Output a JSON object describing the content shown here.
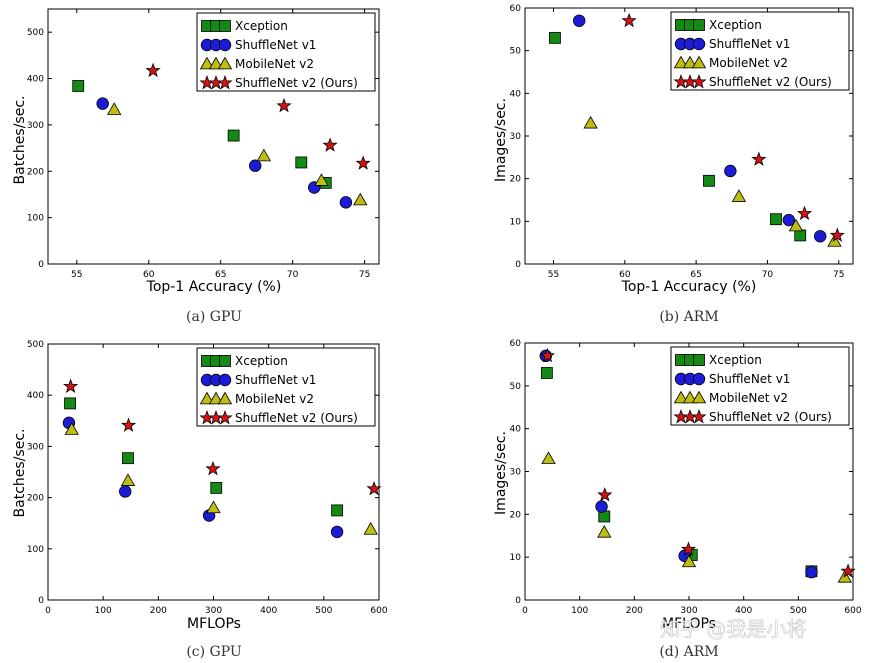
{
  "colors": {
    "xception": "#138a13",
    "shufflenet_v1": "#1c1cd6",
    "mobilenet_v2": "#bdbd14",
    "shufflenet_v2": "#d21414"
  },
  "watermark": "知乎 @我是小将",
  "chart_data": [
    {
      "type": "scatter",
      "id": "a",
      "caption": "(a) GPU",
      "xlabel": "Top-1 Accuracy (%)",
      "ylabel": "Batches/sec.",
      "xlim": [
        53,
        76
      ],
      "ylim": [
        0,
        550
      ],
      "xticks": [
        55,
        60,
        65,
        70,
        75
      ],
      "yticks": [
        0,
        100,
        200,
        300,
        400,
        500
      ],
      "legend_position": "top-right",
      "series": [
        {
          "name": "Xception",
          "marker": "square",
          "x": [
            55.1,
            65.9,
            70.6,
            72.3
          ],
          "y": [
            384,
            277,
            219,
            175
          ]
        },
        {
          "name": "ShuffleNet v1",
          "marker": "circle",
          "x": [
            56.8,
            67.4,
            71.5,
            73.7
          ],
          "y": [
            346,
            212,
            165,
            133
          ]
        },
        {
          "name": "MobileNet v2",
          "marker": "triangle",
          "x": [
            57.6,
            68.0,
            72.0,
            74.7
          ],
          "y": [
            333,
            233,
            180,
            138
          ]
        },
        {
          "name": "ShuffleNet v2 (Ours)",
          "marker": "star",
          "x": [
            60.3,
            69.4,
            72.6,
            74.9
          ],
          "y": [
            417,
            341,
            256,
            217
          ]
        }
      ]
    },
    {
      "type": "scatter",
      "id": "b",
      "caption": "(b) ARM",
      "xlabel": "Top-1 Accuracy (%)",
      "ylabel": "Images/sec.",
      "xlim": [
        53,
        76
      ],
      "ylim": [
        0,
        60
      ],
      "xticks": [
        55,
        60,
        65,
        70,
        75
      ],
      "yticks": [
        0,
        10,
        20,
        30,
        40,
        50,
        60
      ],
      "legend_position": "top-right",
      "series": [
        {
          "name": "Xception",
          "marker": "square",
          "x": [
            55.1,
            65.9,
            70.6,
            72.3
          ],
          "y": [
            53,
            19.5,
            10.5,
            6.7
          ]
        },
        {
          "name": "ShuffleNet v1",
          "marker": "circle",
          "x": [
            56.8,
            67.4,
            71.5,
            73.7
          ],
          "y": [
            57,
            21.8,
            10.3,
            6.5
          ]
        },
        {
          "name": "MobileNet v2",
          "marker": "triangle",
          "x": [
            57.6,
            68.0,
            72.0,
            74.7
          ],
          "y": [
            33,
            15.8,
            8.9,
            5.3
          ]
        },
        {
          "name": "ShuffleNet v2 (Ours)",
          "marker": "star",
          "x": [
            60.3,
            69.4,
            72.6,
            74.9
          ],
          "y": [
            57,
            24.5,
            11.8,
            6.7
          ]
        }
      ]
    },
    {
      "type": "scatter",
      "id": "c",
      "caption": "(c) GPU",
      "xlabel": "MFLOPs",
      "ylabel": "Batches/sec.",
      "xlim": [
        0,
        600
      ],
      "ylim": [
        0,
        500
      ],
      "xticks": [
        0,
        100,
        200,
        300,
        400,
        500,
        600
      ],
      "yticks": [
        0,
        100,
        200,
        300,
        400,
        500
      ],
      "legend_position": "top-right",
      "series": [
        {
          "name": "Xception",
          "marker": "square",
          "x": [
            40,
            145,
            305,
            524
          ],
          "y": [
            384,
            277,
            219,
            175
          ]
        },
        {
          "name": "ShuffleNet v1",
          "marker": "circle",
          "x": [
            38,
            140,
            292,
            524
          ],
          "y": [
            346,
            212,
            165,
            133
          ]
        },
        {
          "name": "MobileNet v2",
          "marker": "triangle",
          "x": [
            43,
            145,
            300,
            585
          ],
          "y": [
            333,
            233,
            180,
            138
          ]
        },
        {
          "name": "ShuffleNet v2 (Ours)",
          "marker": "star",
          "x": [
            41,
            146,
            299,
            591
          ],
          "y": [
            417,
            341,
            256,
            217
          ]
        }
      ]
    },
    {
      "type": "scatter",
      "id": "d",
      "caption": "(d) ARM",
      "xlabel": "MFLOPs",
      "ylabel": "Images/sec.",
      "xlim": [
        0,
        600
      ],
      "ylim": [
        0,
        60
      ],
      "xticks": [
        0,
        100,
        200,
        300,
        400,
        500,
        600
      ],
      "yticks": [
        0,
        10,
        20,
        30,
        40,
        50,
        60
      ],
      "legend_position": "top-right",
      "series": [
        {
          "name": "Xception",
          "marker": "square",
          "x": [
            40,
            145,
            305,
            524
          ],
          "y": [
            53,
            19.5,
            10.5,
            6.7
          ]
        },
        {
          "name": "ShuffleNet v1",
          "marker": "circle",
          "x": [
            38,
            140,
            292,
            524
          ],
          "y": [
            57,
            21.8,
            10.3,
            6.5
          ]
        },
        {
          "name": "MobileNet v2",
          "marker": "triangle",
          "x": [
            43,
            145,
            300,
            585
          ],
          "y": [
            33,
            15.8,
            8.9,
            5.3
          ]
        },
        {
          "name": "ShuffleNet v2 (Ours)",
          "marker": "star",
          "x": [
            41,
            146,
            299,
            591
          ],
          "y": [
            57,
            24.5,
            11.8,
            6.7
          ]
        }
      ]
    }
  ]
}
